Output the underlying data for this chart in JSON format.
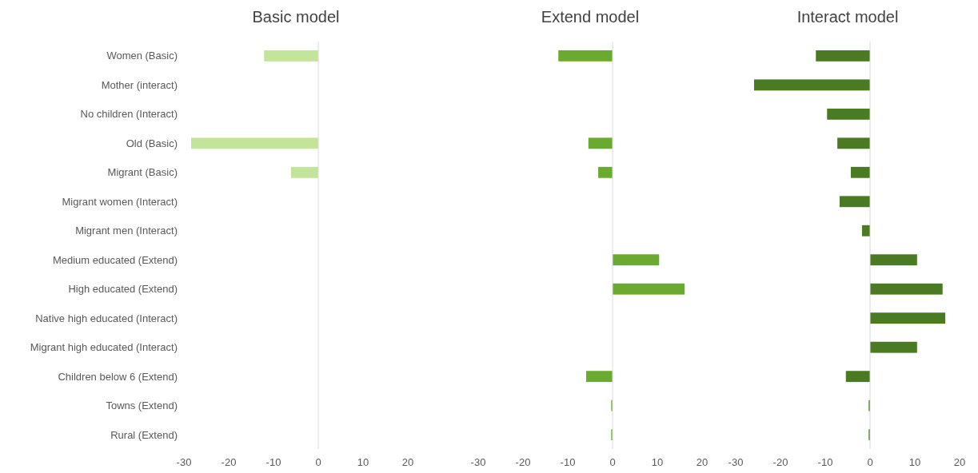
{
  "chart_data": [
    {
      "type": "bar",
      "orientation": "horizontal",
      "title": "Basic model",
      "categories": [
        "Women (Basic)",
        "Mother (interact)",
        "No children (Interact)",
        "Old (Basic)",
        "Migrant (Basic)",
        "Migrant women (Interact)",
        "Migrant men (Interact)",
        "Medium educated (Extend)",
        "High educated (Extend)",
        "Native high educated (Interact)",
        "Migrant high educated (Interact)",
        "Children below 6 (Extend)",
        "Towns (Extend)",
        "Rural (Extend)"
      ],
      "values": [
        -12.1,
        null,
        null,
        -28.4,
        -6.1,
        null,
        null,
        null,
        null,
        null,
        null,
        null,
        null,
        null
      ],
      "color": "#c2e59a",
      "xlim": [
        -30,
        20
      ],
      "xticks": [
        -30,
        -20,
        -10,
        0,
        10,
        20
      ]
    },
    {
      "type": "bar",
      "orientation": "horizontal",
      "title": "Extend model",
      "categories": [
        null,
        null,
        null,
        null,
        null,
        null,
        null,
        null,
        null,
        null,
        null,
        null,
        null,
        null
      ],
      "values": [
        -12.1,
        null,
        null,
        -5.4,
        -3.2,
        null,
        null,
        10.4,
        16.1,
        null,
        null,
        -5.9,
        -0.3,
        -0.3
      ],
      "color": "#6aab2f",
      "xlim": [
        -30,
        20
      ],
      "xticks": [
        -30,
        -20,
        -10,
        0,
        10,
        20
      ],
      "tick_labels": "x"
    },
    {
      "type": "bar",
      "orientation": "horizontal",
      "title": "Interact model",
      "categories": [
        null,
        null,
        null,
        null,
        null,
        null,
        null,
        null,
        null,
        null,
        null,
        null,
        null,
        null
      ],
      "values": [
        -12.1,
        -25.9,
        -9.6,
        -7.3,
        -4.3,
        -6.8,
        -1.8,
        10.5,
        16.2,
        16.8,
        10.5,
        -5.4,
        -0.3,
        -0.3
      ],
      "color": "#4a7a22",
      "xlim": [
        -30,
        20
      ],
      "xticks": [
        -30,
        -20,
        -10,
        0,
        10,
        20
      ],
      "tick_labels": "x"
    }
  ]
}
